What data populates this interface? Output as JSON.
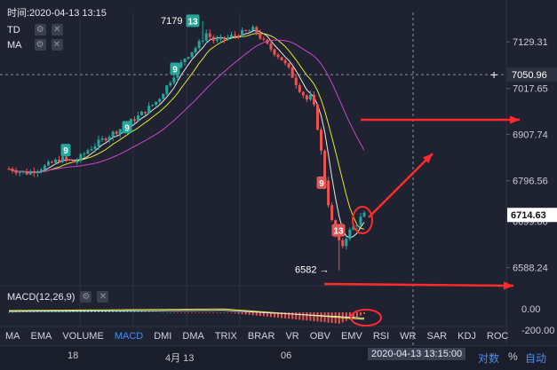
{
  "header": {
    "timestamp": "时间:2020-04-13 13:15"
  },
  "indicators": [
    {
      "label": "TD"
    },
    {
      "label": "MA"
    }
  ],
  "macd_label": "MACD(12,26,9)",
  "colors": {
    "up": "#26a69a",
    "down": "#ef5350",
    "ma1": "#e8e8e8",
    "ma2": "#e6e62e",
    "ma3": "#cc44cc",
    "arrow": "#ff2a2a",
    "td_up": "#26a69a",
    "td_down": "#e05555"
  },
  "chart_data": {
    "type": "candlestick",
    "price_axis": {
      "ticks": [
        "7129.31",
        "7017.65",
        "6907.74",
        "6796.56",
        "6699.00",
        "6588.24"
      ],
      "ylim": [
        6545,
        7200
      ]
    },
    "current_price": "7050.96",
    "last_price": "6714.63",
    "annotations": {
      "high_label": "7179",
      "low_label": "6582 →"
    },
    "td_markers": [
      {
        "text": "9",
        "kind": "up",
        "price": 6870
      },
      {
        "text": "9",
        "kind": "up",
        "price": 6925
      },
      {
        "text": "9",
        "kind": "up",
        "price": 7065
      },
      {
        "text": "13",
        "kind": "up",
        "price": 7180
      },
      {
        "text": "9",
        "kind": "down",
        "price": 6792
      },
      {
        "text": "13",
        "kind": "down",
        "price": 6678
      }
    ],
    "macd_axis": {
      "ticks": [
        "0.00",
        "-200.00"
      ]
    },
    "x_labels": [
      "18",
      "4月 13",
      "06"
    ],
    "cursor_time": "2020-04-13 13:15:00"
  },
  "tabs": [
    "MA",
    "EMA",
    "VOLUME",
    "MACD",
    "DMI",
    "DMA",
    "TRIX",
    "BRAR",
    "VR",
    "OBV",
    "EMV",
    "RSI",
    "WR",
    "SAR",
    "KDJ",
    "ROC"
  ],
  "active_tab": "MACD",
  "bottom_right": {
    "log": "对数",
    "pct": "%",
    "auto": "自动"
  }
}
